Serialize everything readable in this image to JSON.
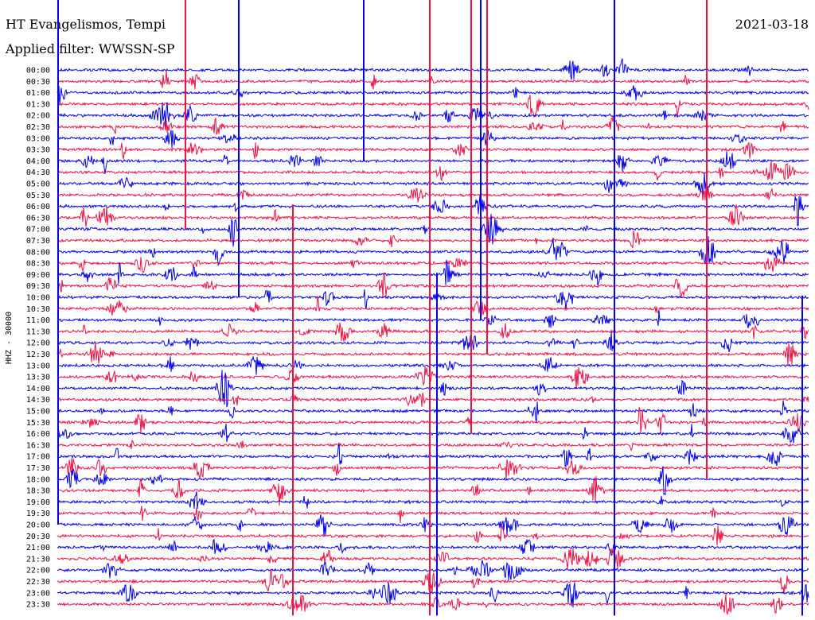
{
  "header": {
    "station": "HT Evangelismos, Tempi",
    "filter": "Applied filter: WWSSN-SP",
    "date": "2021-03-18"
  },
  "chart_data": {
    "type": "line",
    "ylabel": "HHZ - 30000",
    "y_ticks": [
      "00:00",
      "00:30",
      "01:00",
      "01:30",
      "02:00",
      "02:30",
      "03:00",
      "03:30",
      "04:00",
      "04:30",
      "05:00",
      "05:30",
      "06:00",
      "06:30",
      "07:00",
      "07:30",
      "08:00",
      "08:30",
      "09:00",
      "09:30",
      "10:00",
      "10:30",
      "11:00",
      "11:30",
      "12:00",
      "12:30",
      "13:00",
      "13:30",
      "14:00",
      "14:30",
      "15:00",
      "15:30",
      "16:00",
      "16:30",
      "17:00",
      "17:30",
      "18:00",
      "18:30",
      "19:00",
      "19:30",
      "20:00",
      "20:30",
      "21:00",
      "21:30",
      "22:00",
      "22:30",
      "23:00",
      "23:30"
    ],
    "colors": [
      "#0000ee",
      "#ee1144"
    ],
    "grid": false
  }
}
